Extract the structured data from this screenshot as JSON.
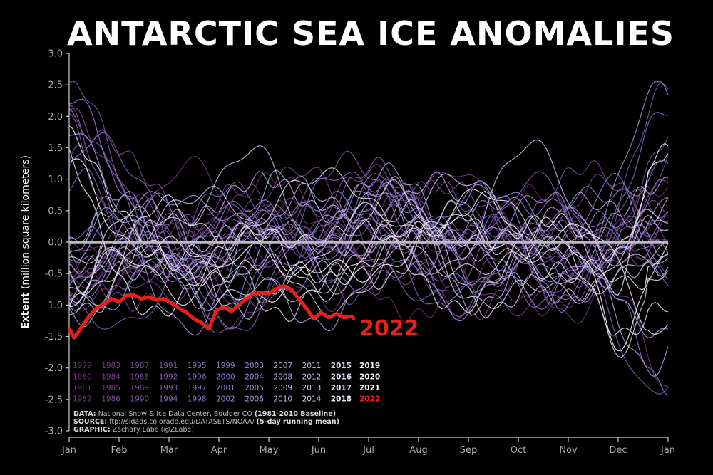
{
  "chart_data": {
    "type": "line",
    "title": "ANTARCTIC SEA ICE ANOMALIES",
    "ylabel_bold": "Extent",
    "ylabel_rest": " (million square kilometers)",
    "ylim": [
      -3.0,
      3.0
    ],
    "yticks": [
      "3.0",
      "2.5",
      "2.0",
      "1.5",
      "1.0",
      "0.5",
      "0.0",
      "-0.5",
      "-1.0",
      "-1.5",
      "-2.0",
      "-2.5",
      "-3.0"
    ],
    "yvalues": [
      3.0,
      2.5,
      2.0,
      1.5,
      1.0,
      0.5,
      0.0,
      -0.5,
      -1.0,
      -1.5,
      -2.0,
      -2.5,
      -3.0
    ],
    "xticks": [
      "Jan",
      "Feb",
      "Mar",
      "Apr",
      "May",
      "Jun",
      "Jul",
      "Aug",
      "Sep",
      "Oct",
      "Nov",
      "Dec",
      "Jan"
    ],
    "xlim": [
      0,
      12
    ],
    "zero_line": true,
    "legend_rows": [
      [
        "1979",
        "1983",
        "1987",
        "1991",
        "1995",
        "1999",
        "2003",
        "2007",
        "2011",
        "2015",
        "2019"
      ],
      [
        "1980",
        "1984",
        "1988",
        "1992",
        "1996",
        "2000",
        "2004",
        "2008",
        "2012",
        "2016",
        "2020"
      ],
      [
        "1981",
        "1985",
        "1989",
        "1993",
        "1997",
        "2001",
        "2005",
        "2009",
        "2013",
        "2017",
        "2021"
      ],
      [
        "1982",
        "1986",
        "1990",
        "1994",
        "1998",
        "2002",
        "2006",
        "2010",
        "2014",
        "2018",
        "2022"
      ]
    ],
    "highlight": {
      "name": "2022",
      "color": "#e8201b",
      "x": [
        0.0,
        0.1,
        0.25,
        0.4,
        0.55,
        0.7,
        0.85,
        1.0,
        1.15,
        1.3,
        1.45,
        1.6,
        1.75,
        1.9,
        2.05,
        2.2,
        2.35,
        2.5,
        2.65,
        2.8,
        2.95,
        3.1,
        3.25,
        3.4,
        3.55,
        3.7,
        3.85,
        4.0,
        4.15,
        4.3,
        4.45,
        4.6,
        4.75,
        4.9,
        5.05,
        5.2,
        5.35,
        5.5,
        5.65,
        5.7
      ],
      "y": [
        -1.38,
        -1.52,
        -1.35,
        -1.18,
        -1.05,
        -0.98,
        -0.9,
        -0.95,
        -0.85,
        -0.84,
        -0.9,
        -0.87,
        -0.92,
        -0.9,
        -0.97,
        -1.05,
        -1.12,
        -1.22,
        -1.28,
        -1.38,
        -1.08,
        -1.04,
        -1.1,
        -1.0,
        -0.9,
        -0.82,
        -0.8,
        -0.82,
        -0.74,
        -0.7,
        -0.75,
        -0.9,
        -1.05,
        -1.22,
        -1.12,
        -1.2,
        -1.14,
        -1.2,
        -1.18,
        -1.21
      ]
    }
  },
  "footer": {
    "data_label": "DATA:",
    "data_text": " National Snow & Ice Data Center, Boulder CO ",
    "data_paren": "(1981-2010 Baseline)",
    "source_label": "SOURCE:",
    "source_text": " ftp://sidads.colorado.edu/DATASETS/NOAA/ ",
    "source_paren": "(5-day running mean)",
    "graphic_label": "GRAPHIC:",
    "graphic_text": " Zachary Labe (@ZLabe)"
  },
  "colors": {
    "highlight": "#e8201b",
    "oldest": "#6b2d6b",
    "mid": "#8a7ad6",
    "newest": "#ffffff",
    "zero_line": "#bbbbbb"
  }
}
